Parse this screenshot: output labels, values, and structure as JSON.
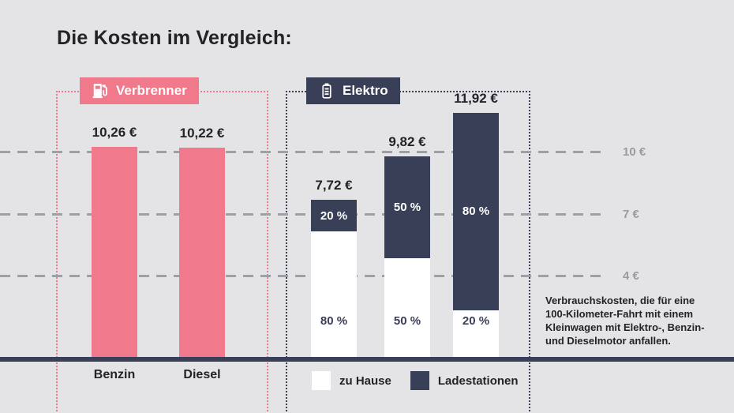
{
  "title": "Die Kosten im Vergleich:",
  "badges": {
    "verbrenner": {
      "label": "Verbrenner",
      "icon": "fuel-pump-icon"
    },
    "elektro": {
      "label": "Elektro",
      "icon": "battery-icon"
    }
  },
  "annotation": "Verbrauchskosten, die für eine\n100-Kilometer-Fahrt mit einem\nKleinwagen mit Elektro-, Benzin-\nund Dieselmotor anfallen.",
  "colors": {
    "background": "#e4e4e7",
    "verbrenner_pink": "#f0798b",
    "elektro_navy": "#3a3f58",
    "bar_white": "#ffffff",
    "gridline_gray": "#9da0a4",
    "axis_label_gray": "#9a9aa0",
    "text_dark": "#222228"
  },
  "chart_data": {
    "type": "bar",
    "title": "Die Kosten im Vergleich:",
    "xlabel": "",
    "ylabel": "€",
    "ylim": [
      0,
      13
    ],
    "grid": "dashed horizontal lines at 4, 7 and 10 €",
    "y_axis": {
      "ticks": [
        {
          "label": "10 €",
          "value": 10
        },
        {
          "label": "7 €",
          "value": 7
        },
        {
          "label": "4 €",
          "value": 4
        }
      ]
    },
    "verbrenner": {
      "group_label": "Verbrenner",
      "bars": [
        {
          "category": "Benzin",
          "value": 10.26,
          "value_label": "10,26 €"
        },
        {
          "category": "Diesel",
          "value": 10.22,
          "value_label": "10,22 €"
        }
      ]
    },
    "elektro": {
      "group_label": "Elektro",
      "bars": [
        {
          "value": 7.72,
          "value_label": "7,72 €",
          "ladestationen_pct": 20,
          "zu_hause_pct": 80,
          "top_label": "20 %",
          "bottom_label": "80 %"
        },
        {
          "value": 9.82,
          "value_label": "9,82 €",
          "ladestationen_pct": 50,
          "zu_hause_pct": 50,
          "top_label": "50 %",
          "bottom_label": "50 %"
        },
        {
          "value": 11.92,
          "value_label": "11,92 €",
          "ladestationen_pct": 80,
          "zu_hause_pct": 20,
          "top_label": "80 %",
          "bottom_label": "20 %"
        }
      ]
    },
    "legend": [
      {
        "label": "zu Hause",
        "color": "#ffffff"
      },
      {
        "label": "Ladestationen",
        "color": "#3a3f58"
      }
    ]
  }
}
